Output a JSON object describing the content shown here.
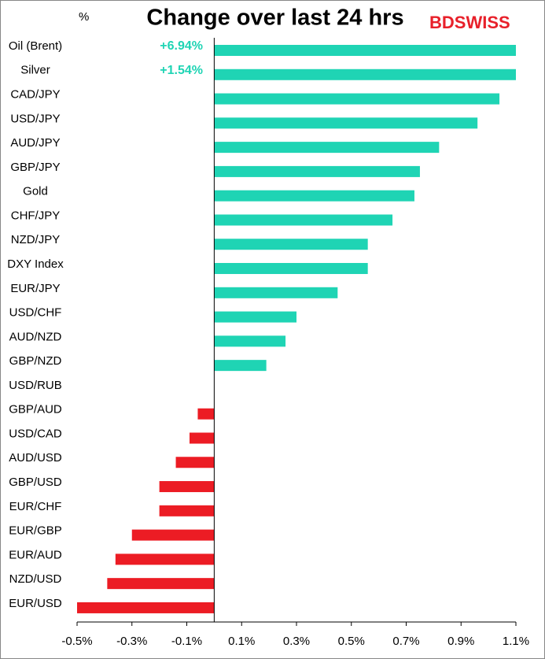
{
  "chart_data": {
    "type": "bar",
    "orientation": "horizontal",
    "title": "Change over last 24 hrs",
    "unit_label": "%",
    "logo": "BDSWISS",
    "categories": [
      "Oil (Brent)",
      "Silver",
      "CAD/JPY",
      "USD/JPY",
      "AUD/JPY",
      "GBP/JPY",
      "Gold",
      "CHF/JPY",
      "NZD/JPY",
      "DXY Index",
      "EUR/JPY",
      "USD/CHF",
      "AUD/NZD",
      "GBP/NZD",
      "USD/RUB",
      "GBP/AUD",
      "USD/CAD",
      "AUD/USD",
      "GBP/USD",
      "EUR/CHF",
      "EUR/GBP",
      "EUR/AUD",
      "NZD/USD",
      "EUR/USD"
    ],
    "values": [
      6.94,
      1.54,
      1.04,
      0.96,
      0.82,
      0.75,
      0.73,
      0.65,
      0.56,
      0.56,
      0.45,
      0.3,
      0.26,
      0.19,
      0,
      -0.06,
      -0.09,
      -0.14,
      -0.2,
      -0.2,
      -0.3,
      -0.36,
      -0.39,
      -0.5
    ],
    "value_labels": [
      "+6.94%",
      "+1.54%",
      null,
      null,
      null,
      null,
      null,
      null,
      null,
      null,
      null,
      null,
      null,
      null,
      null,
      null,
      null,
      null,
      null,
      null,
      null,
      null,
      null,
      null
    ],
    "colors": {
      "positive": "#1fd4b4",
      "negative": "#ec1c24"
    },
    "xlim": [
      -0.5,
      1.1
    ],
    "xticks": [
      {
        "value": -0.5,
        "label": "-0.5%"
      },
      {
        "value": -0.3,
        "label": "-0.3%"
      },
      {
        "value": -0.1,
        "label": "-0.1%"
      },
      {
        "value": 0.1,
        "label": "0.1%"
      },
      {
        "value": 0.3,
        "label": "0.3%"
      },
      {
        "value": 0.5,
        "label": "0.5%"
      },
      {
        "value": 0.7,
        "label": "0.7%"
      },
      {
        "value": 0.9,
        "label": "0.9%"
      },
      {
        "value": 1.1,
        "label": "1.1%"
      }
    ]
  }
}
